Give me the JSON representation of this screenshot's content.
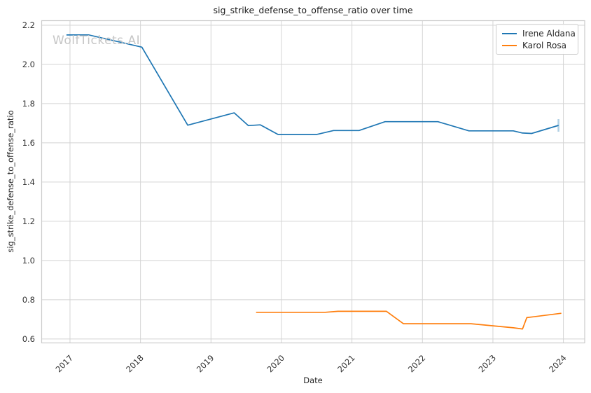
{
  "chart": {
    "watermark": "WolfTickets.AI"
  },
  "chart_data": {
    "type": "line",
    "title": "sig_strike_defense_to_offense_ratio over time",
    "xlabel": "Date",
    "ylabel": "sig_strike_defense_to_offense_ratio",
    "x_ticks": [
      2017,
      2018,
      2019,
      2020,
      2021,
      2022,
      2023,
      2024
    ],
    "y_ticks": [
      0.6,
      0.8,
      1.0,
      1.2,
      1.4,
      1.6,
      1.8,
      2.0,
      2.2
    ],
    "x_range": [
      2016.598,
      2024.302
    ],
    "y_range": [
      0.58,
      2.223
    ],
    "grid": true,
    "legend_position": "upper right",
    "series": [
      {
        "name": "Irene Aldana",
        "color": "#1f77b4",
        "x": [
          2016.95,
          2017.27,
          2018.02,
          2018.67,
          2019.33,
          2019.53,
          2019.7,
          2019.95,
          2020.5,
          2020.74,
          2021.1,
          2021.47,
          2022.22,
          2022.66,
          2023.29,
          2023.42,
          2023.55,
          2023.93
        ],
        "y": [
          2.15,
          2.15,
          2.088,
          1.69,
          1.753,
          1.688,
          1.692,
          1.643,
          1.643,
          1.663,
          1.663,
          1.708,
          1.708,
          1.661,
          1.661,
          1.65,
          1.648,
          1.689
        ],
        "end_tick": true
      },
      {
        "name": "Karol Rosa",
        "color": "#ff7f0e",
        "x": [
          2019.64,
          2020.62,
          2020.8,
          2021.49,
          2021.73,
          2022.69,
          2023.29,
          2023.42,
          2023.48,
          2023.97
        ],
        "y": [
          0.736,
          0.736,
          0.741,
          0.741,
          0.678,
          0.678,
          0.657,
          0.651,
          0.709,
          0.731
        ],
        "end_tick": false
      }
    ]
  }
}
